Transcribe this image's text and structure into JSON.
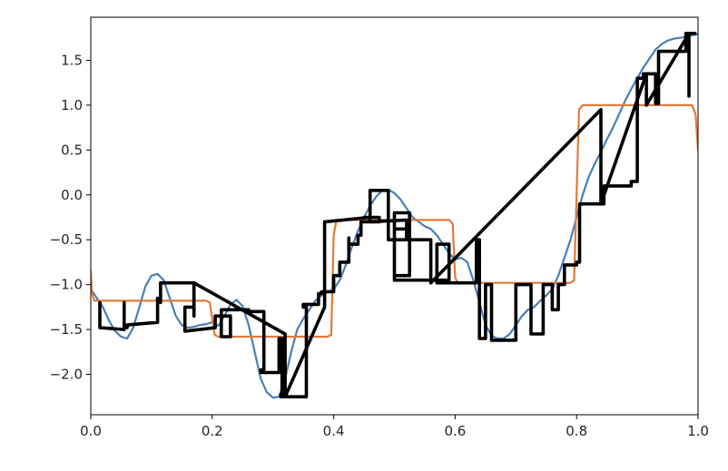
{
  "chart_data": {
    "type": "line",
    "title": "",
    "xlabel": "",
    "ylabel": "",
    "xlim": [
      0.0,
      1.0
    ],
    "ylim": [
      -2.45,
      1.98
    ],
    "grid": false,
    "xticks": [
      0.0,
      0.2,
      0.4,
      0.6,
      0.8,
      1.0
    ],
    "xtick_labels": [
      "0.0",
      "0.2",
      "0.4",
      "0.6",
      "0.8",
      "1.0"
    ],
    "yticks": [
      1.5,
      1.0,
      0.5,
      0.0,
      -0.5,
      -1.0,
      -1.5,
      -2.0
    ],
    "ytick_labels": [
      "1.5",
      "1.0",
      "0.5",
      "0.0",
      "−0.5",
      "−1.0",
      "−1.5",
      "−2.0"
    ],
    "series": [
      {
        "color": "#4a7fb5",
        "stroke_width": 2.2,
        "x": [
          0.0,
          0.01,
          0.02,
          0.03,
          0.04,
          0.05,
          0.06,
          0.07,
          0.08,
          0.09,
          0.1,
          0.11,
          0.12,
          0.13,
          0.14,
          0.15,
          0.16,
          0.17,
          0.18,
          0.19,
          0.2,
          0.21,
          0.22,
          0.23,
          0.24,
          0.25,
          0.26,
          0.27,
          0.28,
          0.29,
          0.3,
          0.31,
          0.32,
          0.33,
          0.34,
          0.35,
          0.36,
          0.37,
          0.38,
          0.39,
          0.4,
          0.41,
          0.42,
          0.43,
          0.44,
          0.45,
          0.46,
          0.47,
          0.48,
          0.49,
          0.5,
          0.51,
          0.52,
          0.53,
          0.54,
          0.55,
          0.56,
          0.57,
          0.58,
          0.59,
          0.6,
          0.61,
          0.62,
          0.63,
          0.64,
          0.65,
          0.66,
          0.67,
          0.68,
          0.69,
          0.7,
          0.71,
          0.72,
          0.73,
          0.74,
          0.75,
          0.76,
          0.77,
          0.78,
          0.79,
          0.8,
          0.81,
          0.82,
          0.83,
          0.84,
          0.85,
          0.86,
          0.87,
          0.88,
          0.89,
          0.9,
          0.91,
          0.92,
          0.93,
          0.94,
          0.95,
          0.96,
          0.97,
          0.98,
          0.99,
          1.0
        ],
        "y": [
          -1.05,
          -1.15,
          -1.25,
          -1.4,
          -1.52,
          -1.58,
          -1.6,
          -1.48,
          -1.25,
          -1.02,
          -0.9,
          -0.88,
          -0.95,
          -1.15,
          -1.35,
          -1.45,
          -1.48,
          -1.47,
          -1.45,
          -1.44,
          -1.42,
          -1.46,
          -1.35,
          -1.22,
          -1.17,
          -1.24,
          -1.45,
          -1.75,
          -2.05,
          -2.2,
          -2.26,
          -2.25,
          -2.05,
          -1.75,
          -1.5,
          -1.38,
          -1.28,
          -1.18,
          -1.12,
          -1.08,
          -1.05,
          -0.95,
          -0.78,
          -0.58,
          -0.4,
          -0.25,
          -0.12,
          -0.02,
          0.05,
          0.06,
          0.02,
          -0.05,
          -0.15,
          -0.25,
          -0.3,
          -0.35,
          -0.38,
          -0.45,
          -0.55,
          -0.65,
          -0.72,
          -0.7,
          -0.75,
          -0.95,
          -1.2,
          -1.45,
          -1.57,
          -1.6,
          -1.6,
          -1.55,
          -1.45,
          -1.35,
          -1.28,
          -1.25,
          -1.18,
          -1.12,
          -1.05,
          -0.9,
          -0.7,
          -0.5,
          -0.25,
          0.0,
          0.2,
          0.35,
          0.48,
          0.62,
          0.75,
          0.9,
          1.05,
          1.18,
          1.3,
          1.42,
          1.52,
          1.62,
          1.68,
          1.72,
          1.74,
          1.75,
          1.76,
          1.78,
          1.79
        ]
      },
      {
        "color": "#e07b39",
        "stroke_width": 2.2,
        "x": [
          0.0,
          0.002,
          0.006,
          0.19,
          0.196,
          0.2,
          0.204,
          0.21,
          0.39,
          0.396,
          0.4,
          0.404,
          0.41,
          0.59,
          0.596,
          0.6,
          0.604,
          0.61,
          0.79,
          0.796,
          0.8,
          0.804,
          0.81,
          0.99,
          0.996,
          1.0
        ],
        "y": [
          -0.85,
          -1.1,
          -1.18,
          -1.18,
          -1.2,
          -1.38,
          -1.56,
          -1.58,
          -1.58,
          -1.56,
          -0.45,
          -0.3,
          -0.28,
          -0.28,
          -0.32,
          -0.92,
          -0.98,
          -0.98,
          -0.98,
          -0.95,
          0.0,
          0.95,
          1.0,
          1.0,
          0.9,
          0.5
        ]
      },
      {
        "color": "#000000",
        "stroke_width": 3.6,
        "x": [
          0.015,
          0.015,
          0.055,
          0.055,
          0.055,
          0.06,
          0.06,
          0.11,
          0.11,
          0.115,
          0.115,
          0.17,
          0.17,
          0.155,
          0.155,
          0.205,
          0.205,
          0.23,
          0.23,
          0.215,
          0.215,
          0.26,
          0.26,
          0.285,
          0.285,
          0.28,
          0.28,
          0.31,
          0.31,
          0.315,
          0.315,
          0.313,
          0.313,
          0.355,
          0.355,
          0.35,
          0.35,
          0.375,
          0.375,
          0.375,
          0.375,
          0.38,
          0.38,
          0.4,
          0.4,
          0.41,
          0.41,
          0.425,
          0.425,
          0.425,
          0.425,
          0.44,
          0.44,
          0.445,
          0.445,
          0.475,
          0.475,
          0.45,
          0.45,
          0.46,
          0.46,
          0.49,
          0.49,
          0.52,
          0.52,
          0.5,
          0.5,
          0.525,
          0.525,
          0.5,
          0.5,
          0.59,
          0.59,
          0.57,
          0.57,
          0.635,
          0.635,
          0.64,
          0.64,
          0.65,
          0.65,
          0.66,
          0.66,
          0.7,
          0.7,
          0.725,
          0.725,
          0.745,
          0.745,
          0.76,
          0.76,
          0.77,
          0.77,
          0.78,
          0.78,
          0.8,
          0.8,
          0.805,
          0.805,
          0.84,
          0.84,
          0.845,
          0.845,
          0.89,
          0.89,
          0.9,
          0.9,
          0.91,
          0.91,
          0.93,
          0.93,
          0.935,
          0.935,
          0.98,
          0.98,
          0.995
        ],
        "y": [
          -1.2,
          -1.48,
          -1.5,
          -1.2,
          -1.45,
          -1.48,
          -1.45,
          -1.42,
          -1.15,
          -1.2,
          -0.98,
          -0.98,
          -1.25,
          -1.25,
          -1.52,
          -1.48,
          -1.35,
          -1.35,
          -1.58,
          -1.58,
          -1.28,
          -1.28,
          -1.3,
          -1.3,
          -1.95,
          -1.95,
          -1.98,
          -1.98,
          -1.6,
          -1.6,
          -2.25,
          -2.22,
          -2.25,
          -2.25,
          -1.25,
          -1.25,
          -1.22,
          -1.22,
          -1.15,
          -1.15,
          -1.1,
          -1.1,
          -1.08,
          -1.08,
          -0.9,
          -0.9,
          -0.75,
          -0.75,
          -0.48,
          -0.48,
          -0.55,
          -0.55,
          -0.45,
          -0.45,
          -0.3,
          -0.3,
          -0.25,
          -0.25,
          -0.25,
          -0.25,
          0.05,
          0.05,
          -0.5,
          -0.5,
          -0.38,
          -0.38,
          -0.9,
          -0.9,
          -0.2,
          -0.2,
          -0.95,
          -0.95,
          -0.55,
          -0.55,
          -0.98,
          -0.98,
          -0.5,
          -0.5,
          -1.6,
          -1.6,
          -1.0,
          -1.0,
          -1.62,
          -1.62,
          -1.0,
          -1.0,
          -1.55,
          -1.55,
          -1.0,
          -1.0,
          -1.28,
          -1.28,
          -1.0,
          -1.0,
          -0.78,
          -0.78,
          -0.75,
          -0.75,
          -0.1,
          -0.1,
          -0.1,
          -0.1,
          0.1,
          0.1,
          0.15,
          0.15,
          1.3,
          1.3,
          1.35,
          1.35,
          1.02,
          1.02,
          1.6,
          1.6,
          1.8,
          1.8
        ]
      },
      {
        "color": "#000000",
        "stroke_width": 3.6,
        "x": [
          0.17,
          0.17,
          0.32,
          0.32,
          0.385,
          0.385,
          0.46,
          0.46,
          0.52,
          0.52,
          0.56,
          0.56,
          0.84,
          0.84,
          0.915,
          0.915,
          0.985,
          0.985
        ],
        "y": [
          -1.35,
          -0.98,
          -1.55,
          -2.25,
          -1.25,
          -0.3,
          -0.25,
          -0.3,
          -0.28,
          -0.5,
          -0.5,
          -0.98,
          0.95,
          -0.1,
          1.35,
          1.0,
          1.8,
          1.1
        ]
      }
    ]
  }
}
